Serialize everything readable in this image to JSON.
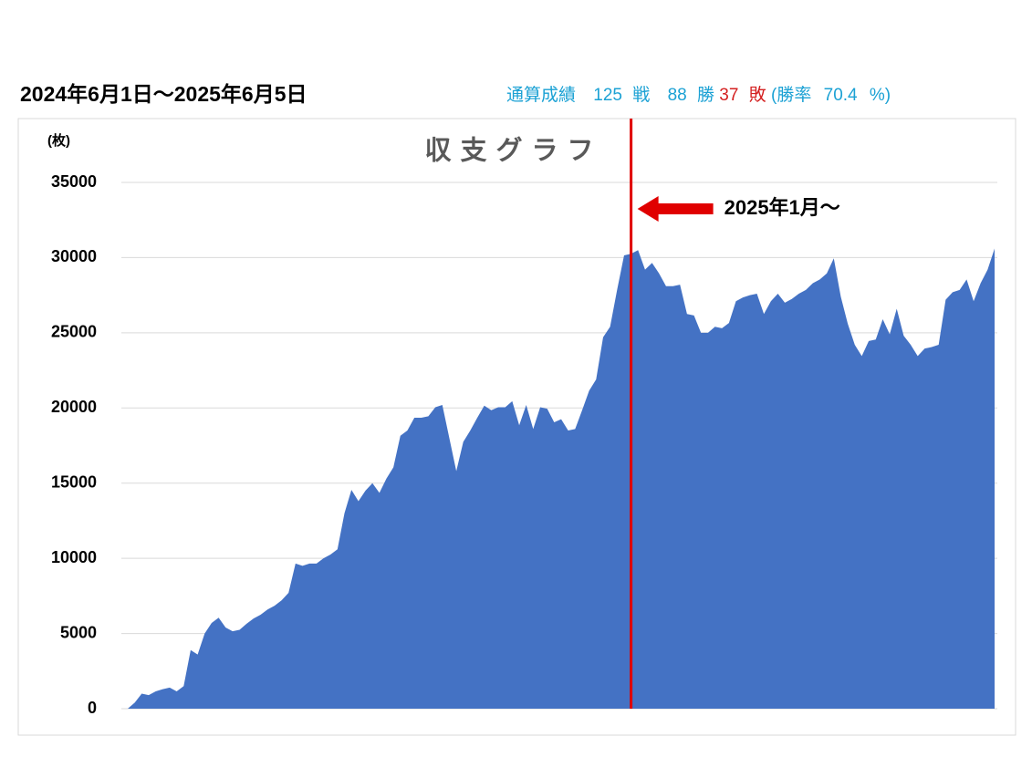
{
  "header": {
    "period": "2024年6月1日～2025年6月5日",
    "record": {
      "label": "通算成績",
      "battles": 125,
      "battles_unit": "戦",
      "wins": 88,
      "wins_unit": "勝",
      "losses": 37,
      "losses_unit": "敗",
      "rate_open": "(勝率",
      "rate": 70.4,
      "rate_close": "%)"
    }
  },
  "chart_data": {
    "type": "area",
    "title": "収支グラフ",
    "y_label": "(枚)",
    "color": "#4472c4",
    "ylim": [
      0,
      35000
    ],
    "yticks": [
      0,
      5000,
      10000,
      15000,
      20000,
      25000,
      30000,
      35000
    ],
    "grid": true,
    "values": [
      0,
      400,
      1000,
      900,
      1150,
      1300,
      1400,
      1150,
      1500,
      3900,
      3600,
      5000,
      5700,
      6050,
      5400,
      5150,
      5250,
      5650,
      6000,
      6250,
      6600,
      6850,
      7200,
      7700,
      9650,
      9500,
      9650,
      9650,
      10000,
      10250,
      10600,
      13000,
      14550,
      13800,
      14500,
      15000,
      14350,
      15300,
      16050,
      18150,
      18500,
      19350,
      19350,
      19450,
      20050,
      20200,
      18000,
      15800,
      17750,
      18500,
      19350,
      20150,
      19850,
      20050,
      20050,
      20450,
      18850,
      20200,
      18600,
      20050,
      19950,
      19050,
      19250,
      18500,
      18600,
      19850,
      21150,
      21900,
      24700,
      25400,
      27850,
      30150,
      30250,
      30500,
      29200,
      29650,
      28950,
      28100,
      28100,
      28200,
      26250,
      26150,
      25000,
      25000,
      25400,
      25300,
      25650,
      27100,
      27350,
      27500,
      27600,
      26250,
      27100,
      27600,
      27000,
      27250,
      27600,
      27850,
      28300,
      28550,
      28950,
      29950,
      27400,
      25600,
      24200,
      23450,
      24450,
      24550,
      25900,
      24900,
      26600,
      24800,
      24200,
      23450,
      23950,
      24050,
      24200,
      27200,
      27700,
      27850,
      28550,
      27100,
      28300,
      29200,
      30600
    ],
    "marker": {
      "index": 72,
      "color": "#e00000",
      "label": "2025年1月～"
    }
  }
}
